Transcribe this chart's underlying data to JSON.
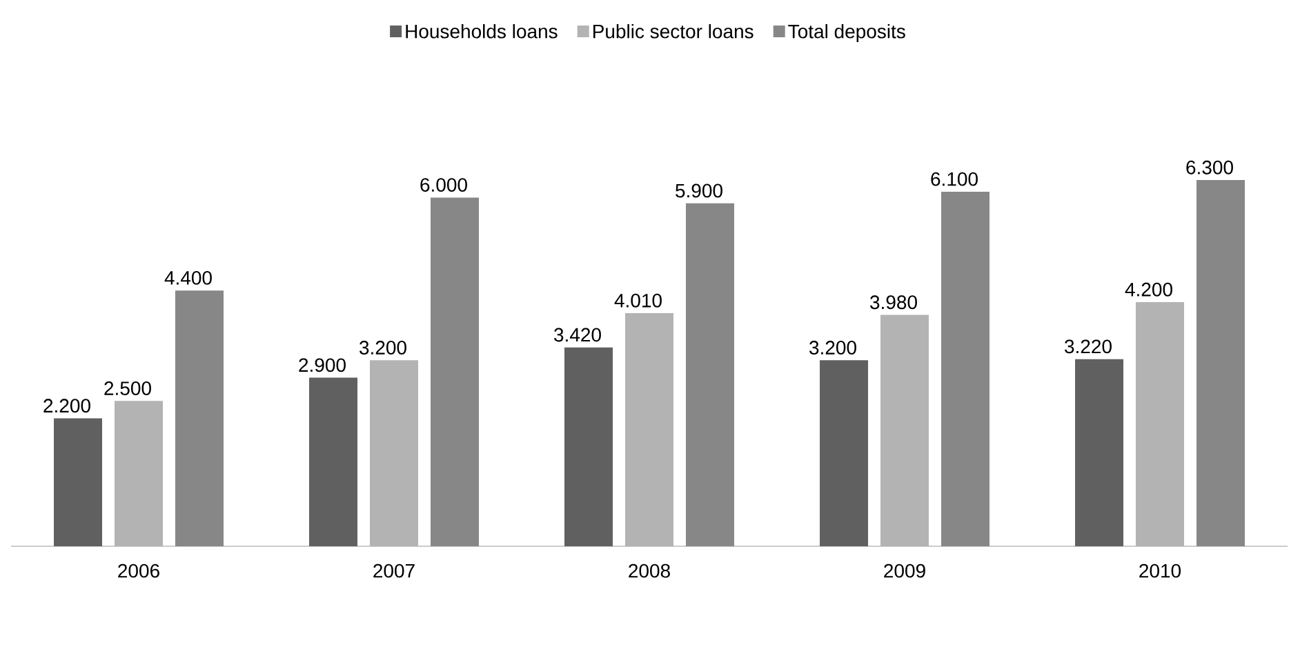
{
  "chart_data": {
    "type": "bar",
    "categories": [
      "2006",
      "2007",
      "2008",
      "2009",
      "2010"
    ],
    "series": [
      {
        "name": "Households loans",
        "color": "#606060",
        "values": [
          2.2,
          2.9,
          3.42,
          3.2,
          3.22
        ],
        "value_labels": [
          "2.200",
          "2.900",
          "3.420",
          "3.200",
          "3.220"
        ]
      },
      {
        "name": "Public sector loans",
        "color": "#b3b3b3",
        "values": [
          2.5,
          3.2,
          4.01,
          3.98,
          4.2
        ],
        "value_labels": [
          "2.500",
          "3.200",
          "4.010",
          "3.980",
          "4.200"
        ]
      },
      {
        "name": "Total deposits",
        "color": "#878787",
        "values": [
          4.4,
          6.0,
          5.9,
          6.1,
          6.3
        ],
        "value_labels": [
          "4.400",
          "6.000",
          "5.900",
          "6.100",
          "6.300"
        ]
      }
    ],
    "legend": "top"
  }
}
